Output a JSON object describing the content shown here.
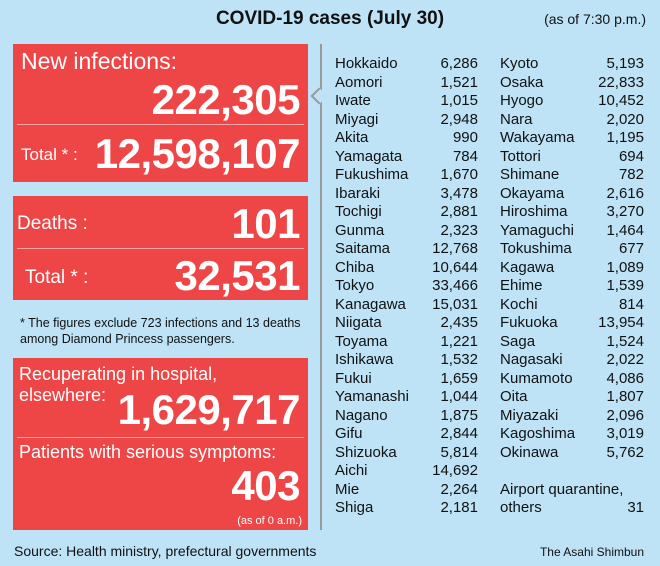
{
  "title": "COVID-19 cases (July 30)",
  "as_of": "(as of 7:30 p.m.)",
  "new_infections": {
    "label": "New infections:",
    "value": "222,305",
    "total_label": "Total * :",
    "total": "12,598,107"
  },
  "deaths": {
    "label": "Deaths :",
    "value": "101",
    "total_label": "Total * :",
    "total": "32,531"
  },
  "note": "* The figures exclude 723 infections and 13 deaths among Diamond Princess passengers.",
  "recuperating": {
    "label": "Recuperating in hospital, elsewhere:",
    "value": "1,629,717"
  },
  "serious": {
    "label": "Patients with serious symptoms:",
    "value": "403",
    "as_of": "(as of 0 a.m.)"
  },
  "prefectures_left": [
    [
      "Hokkaido",
      "6,286"
    ],
    [
      "Aomori",
      "1,521"
    ],
    [
      "Iwate",
      "1,015"
    ],
    [
      "Miyagi",
      "2,948"
    ],
    [
      "Akita",
      "990"
    ],
    [
      "Yamagata",
      "784"
    ],
    [
      "Fukushima",
      "1,670"
    ],
    [
      "Ibaraki",
      "3,478"
    ],
    [
      "Tochigi",
      "2,881"
    ],
    [
      "Gunma",
      "2,323"
    ],
    [
      "Saitama",
      "12,768"
    ],
    [
      "Chiba",
      "10,644"
    ],
    [
      "Tokyo",
      "33,466"
    ],
    [
      "Kanagawa",
      "15,031"
    ],
    [
      "Niigata",
      "2,435"
    ],
    [
      "Toyama",
      "1,221"
    ],
    [
      "Ishikawa",
      "1,532"
    ],
    [
      "Fukui",
      "1,659"
    ],
    [
      "Yamanashi",
      "1,044"
    ],
    [
      "Nagano",
      "1,875"
    ],
    [
      "Gifu",
      "2,844"
    ],
    [
      "Shizuoka",
      "5,814"
    ],
    [
      "Aichi",
      "14,692"
    ],
    [
      "Mie",
      "2,264"
    ],
    [
      "Shiga",
      "2,181"
    ]
  ],
  "prefectures_right": [
    [
      "Kyoto",
      "5,193"
    ],
    [
      "Osaka",
      "22,833"
    ],
    [
      "Hyogo",
      "10,452"
    ],
    [
      "Nara",
      "2,020"
    ],
    [
      "Wakayama",
      "1,195"
    ],
    [
      "Tottori",
      "694"
    ],
    [
      "Shimane",
      "782"
    ],
    [
      "Okayama",
      "2,616"
    ],
    [
      "Hiroshima",
      "3,270"
    ],
    [
      "Yamaguchi",
      "1,464"
    ],
    [
      "Tokushima",
      "677"
    ],
    [
      "Kagawa",
      "1,089"
    ],
    [
      "Ehime",
      "1,539"
    ],
    [
      "Kochi",
      "814"
    ],
    [
      "Fukuoka",
      "13,954"
    ],
    [
      "Saga",
      "1,524"
    ],
    [
      "Nagasaki",
      "2,022"
    ],
    [
      "Kumamoto",
      "4,086"
    ],
    [
      "Oita",
      "1,807"
    ],
    [
      "Miyazaki",
      "2,096"
    ],
    [
      "Kagoshima",
      "3,019"
    ],
    [
      "Okinawa",
      "5,762"
    ]
  ],
  "airport": {
    "label1": "Airport quarantine,",
    "label2": "others",
    "value": "31"
  },
  "footer": {
    "source": "Source: Health ministry, prefectural governments",
    "credit": "The Asahi Shimbun"
  },
  "colors": {
    "background": "#bee3f6",
    "box": "#ee4646"
  }
}
